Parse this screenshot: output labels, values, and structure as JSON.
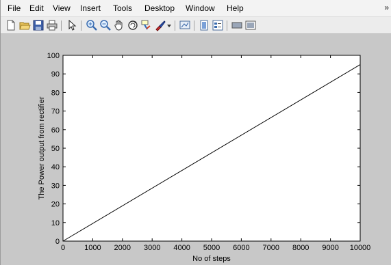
{
  "menu": {
    "items": [
      "File",
      "Edit",
      "View",
      "Insert",
      "Tools",
      "Desktop",
      "Window",
      "Help"
    ],
    "overflow_icon": "double-arrow-icon"
  },
  "toolbar": {
    "icons": [
      "new-figure-icon",
      "open-file-icon",
      "save-icon",
      "print-icon",
      "pointer-icon",
      "zoom-in-icon",
      "zoom-out-icon",
      "pan-hand-icon",
      "rotate-3d-icon",
      "data-cursor-icon",
      "brush-icon",
      "brush-dropdown-icon",
      "link-plot-icon",
      "colorbar-icon",
      "legend-icon",
      "hide-plot-tools-icon",
      "show-plot-tools-icon"
    ]
  },
  "colors": {
    "window_bg": "#c8c8c8",
    "axes_bg": "#ffffff",
    "line": "#000000"
  },
  "chart_data": {
    "type": "line",
    "title": "",
    "xlabel": "No of steps",
    "ylabel": "The Power output from rectifier",
    "xlim": [
      0,
      10000
    ],
    "ylim": [
      0,
      100
    ],
    "xticks": [
      0,
      1000,
      2000,
      3000,
      4000,
      5000,
      6000,
      7000,
      8000,
      9000,
      10000
    ],
    "yticks": [
      0,
      10,
      20,
      30,
      40,
      50,
      60,
      70,
      80,
      90,
      100
    ],
    "grid": false,
    "series": [
      {
        "x": [
          0,
          10000
        ],
        "y": [
          0,
          95
        ]
      }
    ]
  }
}
